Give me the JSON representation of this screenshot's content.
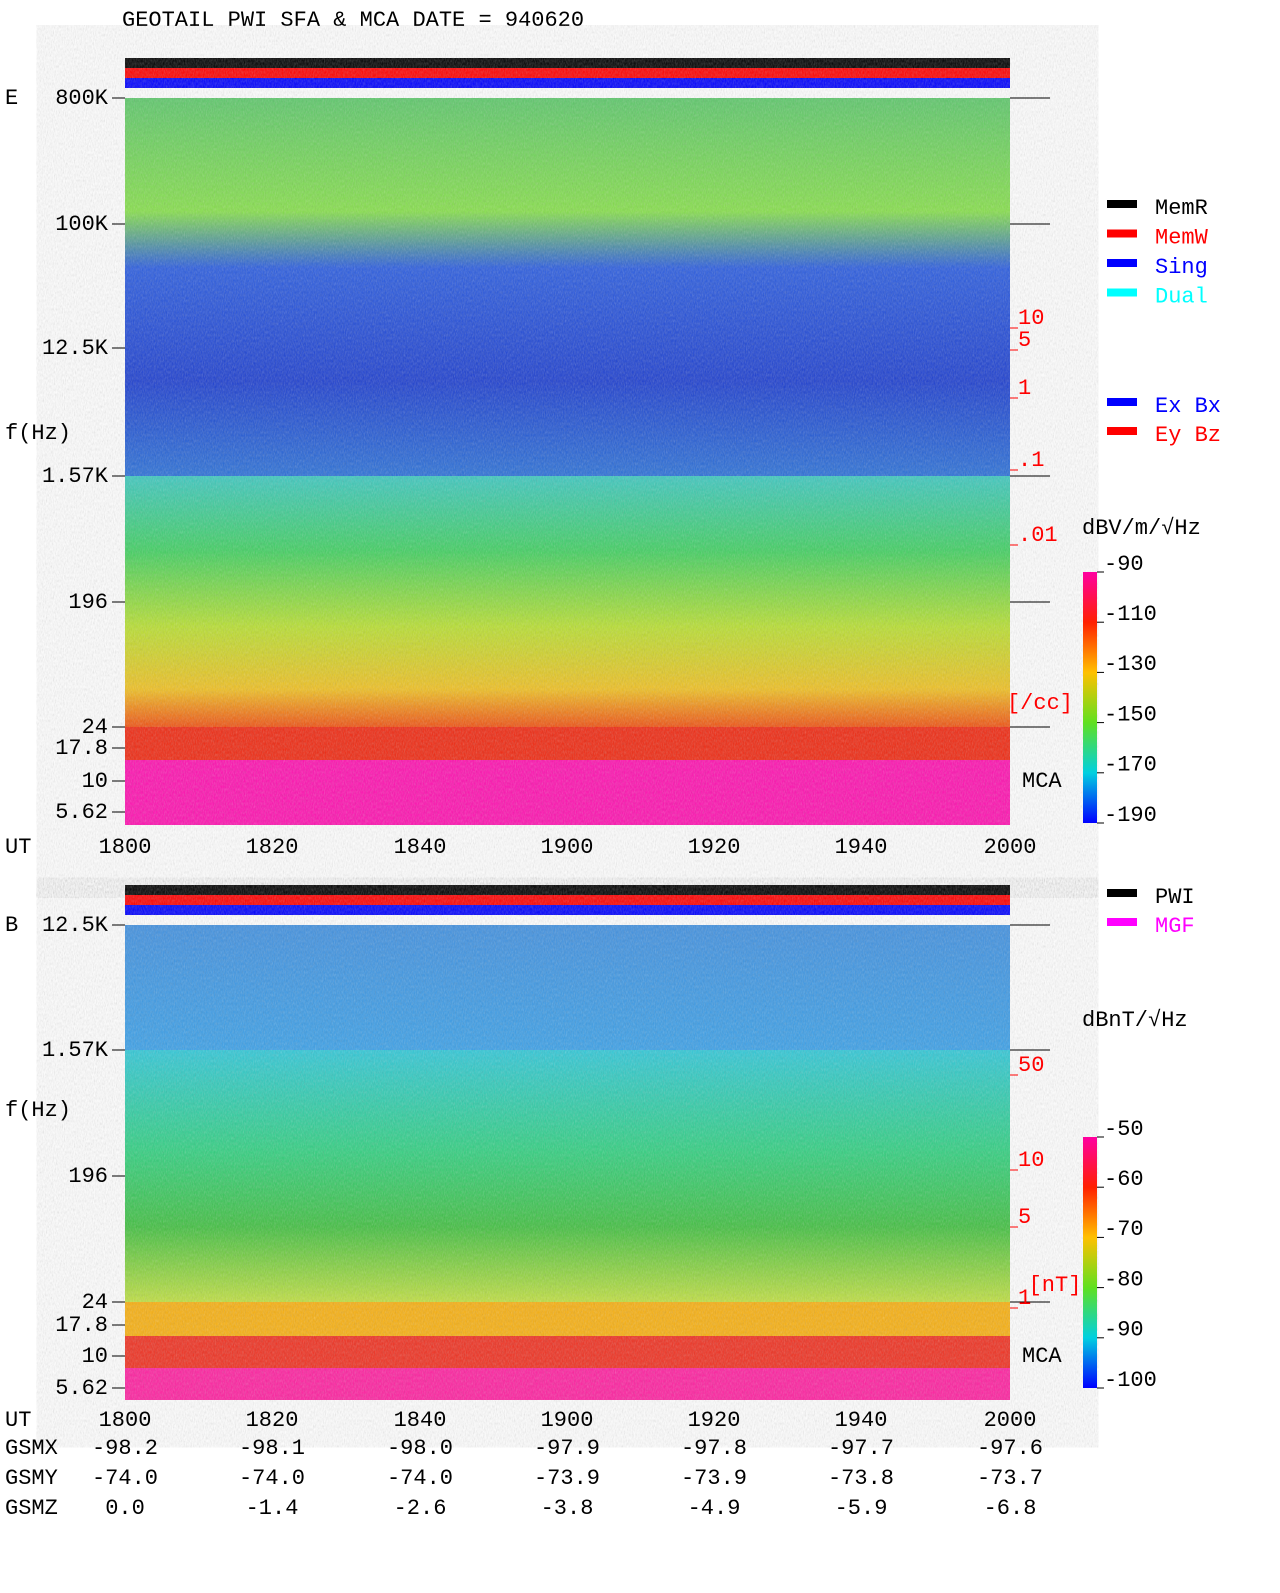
{
  "title": "GEOTAIL   PWI SFA & MCA   DATE = 940620",
  "legend_mem": [
    {
      "label": "MemR",
      "color": "#000000"
    },
    {
      "label": "MemW",
      "color": "#ff0000"
    },
    {
      "label": "Sing",
      "color": "#0000ff"
    },
    {
      "label": "Dual",
      "color": "#00ffff"
    }
  ],
  "legend_comp": [
    {
      "label": "Ex Bx",
      "color": "#0000ff"
    },
    {
      "label": "Ey Bz",
      "color": "#ff0000"
    }
  ],
  "legend_src": [
    {
      "label": "PWI",
      "color": "#000000"
    },
    {
      "label": "MGF",
      "color": "#ff00ff"
    }
  ],
  "panels": [
    {
      "label": "E",
      "ylabel": "f(Hz)",
      "yticks": [
        "800K",
        "100K",
        "12.5K",
        "1.57K",
        "196",
        "24",
        "17.8",
        "10",
        "5.62"
      ],
      "xlabel": "UT",
      "xticks": [
        "1800",
        "1820",
        "1840",
        "1900",
        "1920",
        "1940",
        "2000"
      ],
      "density_ticks": [
        "10",
        "5",
        "1",
        ".1",
        ".01"
      ],
      "density_unit": "[/cc]",
      "mca": "MCA",
      "colorbar_title": "dBV/m/√Hz",
      "colorbar_ticks": [
        "-90",
        "-110",
        "-130",
        "-150",
        "-170",
        "-190"
      ]
    },
    {
      "label": "B",
      "ylabel": "f(Hz)",
      "yticks": [
        "12.5K",
        "1.57K",
        "196",
        "24",
        "17.8",
        "10",
        "5.62"
      ],
      "xlabel": "UT",
      "xticks": [
        "1800",
        "1820",
        "1840",
        "1900",
        "1920",
        "1940",
        "2000"
      ],
      "density_ticks": [
        "50",
        "10",
        "5",
        "1"
      ],
      "density_unit": "[nT]",
      "mca": "MCA",
      "colorbar_title": "dBnT/√Hz",
      "colorbar_ticks": [
        "-50",
        "-60",
        "-70",
        "-80",
        "-90",
        "-100"
      ]
    }
  ],
  "orbit": [
    [
      "GSMX",
      "-98.2",
      "-98.1",
      "-98.0",
      "-97.9",
      "-97.8",
      "-97.7",
      "-97.6"
    ],
    [
      "GSMY",
      "-74.0",
      "-74.0",
      "-74.0",
      "-73.9",
      "-73.9",
      "-73.8",
      "-73.7"
    ],
    [
      "GSMZ",
      "0.0",
      "-1.4",
      "-2.6",
      "-3.8",
      "-4.9",
      "-5.9",
      "-6.8"
    ]
  ]
}
